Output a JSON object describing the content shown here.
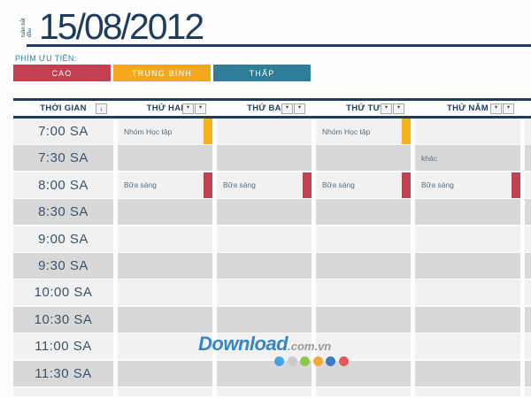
{
  "header": {
    "week_label": "tuần bắt đầu",
    "date": "15/08/2012"
  },
  "legend": {
    "label": "PHÍM ƯU TIÊN:",
    "items": [
      {
        "label": "CAO",
        "color": "#c04250",
        "name": "priority-high"
      },
      {
        "label": "TRUNG BÌNH",
        "color": "#f2a71d",
        "name": "priority-medium"
      },
      {
        "label": "THẤP",
        "color": "#2e7d99",
        "name": "priority-low"
      }
    ]
  },
  "icons": {
    "sort": "↓",
    "dropdown": "▾"
  },
  "table": {
    "time_header": "THỜI GIAN",
    "day_headers": [
      "THỨ HAI",
      "THỨ BA",
      "THỨ TƯ",
      "THỨ NĂM"
    ],
    "rows": [
      {
        "time": "7:00 SA",
        "cells": [
          {
            "text": "Nhóm Học tập",
            "bar": "yellow"
          },
          {
            "text": "",
            "bar": ""
          },
          {
            "text": "Nhóm Học tập",
            "bar": "yellow"
          },
          {
            "text": "",
            "bar": ""
          }
        ]
      },
      {
        "time": "7:30 SA",
        "cells": [
          {
            "text": "",
            "bar": ""
          },
          {
            "text": "",
            "bar": ""
          },
          {
            "text": "",
            "bar": ""
          },
          {
            "text": "khác",
            "bar": ""
          }
        ]
      },
      {
        "time": "8:00 SA",
        "cells": [
          {
            "text": "Bữa sáng",
            "bar": "red"
          },
          {
            "text": "Bữa sáng",
            "bar": "red"
          },
          {
            "text": "Bữa sáng",
            "bar": "red"
          },
          {
            "text": "Bữa sáng",
            "bar": "red"
          }
        ]
      },
      {
        "time": "8:30 SA",
        "cells": [
          {
            "text": "",
            "bar": ""
          },
          {
            "text": "",
            "bar": ""
          },
          {
            "text": "",
            "bar": ""
          },
          {
            "text": "",
            "bar": ""
          }
        ]
      },
      {
        "time": "9:00 SA",
        "cells": [
          {
            "text": "",
            "bar": ""
          },
          {
            "text": "",
            "bar": ""
          },
          {
            "text": "",
            "bar": ""
          },
          {
            "text": "",
            "bar": ""
          }
        ]
      },
      {
        "time": "9:30 SA",
        "cells": [
          {
            "text": "",
            "bar": ""
          },
          {
            "text": "",
            "bar": ""
          },
          {
            "text": "",
            "bar": ""
          },
          {
            "text": "",
            "bar": ""
          }
        ]
      },
      {
        "time": "10:00 SA",
        "cells": [
          {
            "text": "",
            "bar": ""
          },
          {
            "text": "",
            "bar": ""
          },
          {
            "text": "",
            "bar": ""
          },
          {
            "text": "",
            "bar": ""
          }
        ]
      },
      {
        "time": "10:30 SA",
        "cells": [
          {
            "text": "",
            "bar": ""
          },
          {
            "text": "",
            "bar": ""
          },
          {
            "text": "",
            "bar": ""
          },
          {
            "text": "",
            "bar": ""
          }
        ]
      },
      {
        "time": "11:00 SA",
        "cells": [
          {
            "text": "",
            "bar": ""
          },
          {
            "text": "",
            "bar": ""
          },
          {
            "text": "",
            "bar": ""
          },
          {
            "text": "",
            "bar": ""
          }
        ]
      },
      {
        "time": "11:30 SA",
        "cells": [
          {
            "text": "",
            "bar": ""
          },
          {
            "text": "",
            "bar": ""
          },
          {
            "text": "",
            "bar": ""
          },
          {
            "text": "",
            "bar": ""
          }
        ]
      }
    ]
  },
  "colors": {
    "navy": "#1d3c5e",
    "teal_label": "#2d82a0",
    "bar_yellow": "#f7b219",
    "bar_red": "#c04250",
    "row_light": "#f2f1f1",
    "row_dark": "#d9d8d8",
    "time_text": "#3d5266",
    "event_text": "#5c6b7a"
  },
  "watermark": {
    "brand": "Download",
    "suffix": ".com.vn",
    "brand_color": "#3787c7",
    "suffix_color": "#9b9b9b",
    "dot_colors": [
      "#45a6df",
      "#c9c9c9",
      "#8dc63f",
      "#f2a93b",
      "#3b7cc0",
      "#e25a5a"
    ]
  }
}
